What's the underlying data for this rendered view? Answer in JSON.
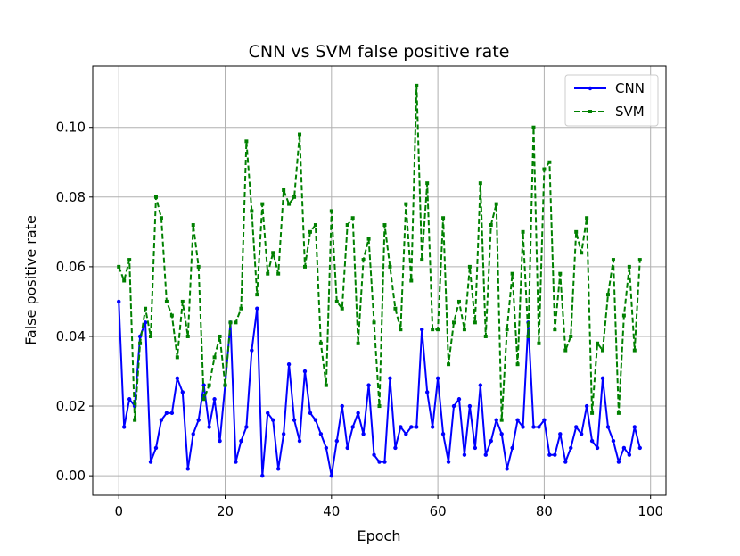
{
  "chart_data": {
    "type": "line",
    "title": "CNN vs SVM false positive rate",
    "xlabel": "Epoch",
    "ylabel": "False positive rate",
    "xlim": [
      -4.9,
      102.9
    ],
    "ylim": [
      -0.0056,
      0.1176
    ],
    "xticks": [
      0,
      20,
      40,
      60,
      80,
      100
    ],
    "yticks": [
      0.0,
      0.02,
      0.04,
      0.06,
      0.08,
      0.1
    ],
    "xtick_labels": [
      "0",
      "20",
      "40",
      "60",
      "80",
      "100"
    ],
    "ytick_labels": [
      "0.00",
      "0.02",
      "0.04",
      "0.06",
      "0.08",
      "0.10"
    ],
    "grid": true,
    "legend_position": "top-right",
    "series": [
      {
        "name": "CNN",
        "color": "#0000ff",
        "style": "solid-dot-markers",
        "values": [
          0.05,
          0.014,
          0.022,
          0.02,
          0.04,
          0.044,
          0.004,
          0.008,
          0.016,
          0.018,
          0.018,
          0.028,
          0.024,
          0.002,
          0.012,
          0.016,
          0.026,
          0.014,
          0.022,
          0.01,
          0.026,
          0.044,
          0.004,
          0.01,
          0.014,
          0.036,
          0.048,
          0.0,
          0.018,
          0.016,
          0.002,
          0.012,
          0.032,
          0.016,
          0.01,
          0.03,
          0.018,
          0.016,
          0.012,
          0.008,
          0.0,
          0.01,
          0.02,
          0.008,
          0.014,
          0.018,
          0.012,
          0.026,
          0.006,
          0.004,
          0.004,
          0.028,
          0.008,
          0.014,
          0.012,
          0.014,
          0.014,
          0.042,
          0.024,
          0.014,
          0.028,
          0.012,
          0.004,
          0.02,
          0.022,
          0.006,
          0.02,
          0.008,
          0.026,
          0.006,
          0.01,
          0.016,
          0.012,
          0.002,
          0.008,
          0.016,
          0.014,
          0.044,
          0.014,
          0.014,
          0.016,
          0.006,
          0.006,
          0.012,
          0.004,
          0.008,
          0.014,
          0.012,
          0.02,
          0.01,
          0.008,
          0.028,
          0.014,
          0.01,
          0.004,
          0.008,
          0.006,
          0.014,
          0.008
        ]
      },
      {
        "name": "SVM",
        "color": "#008000",
        "style": "dashed-square-markers",
        "values": [
          0.06,
          0.056,
          0.062,
          0.016,
          0.038,
          0.048,
          0.04,
          0.08,
          0.074,
          0.05,
          0.046,
          0.034,
          0.05,
          0.04,
          0.072,
          0.06,
          0.022,
          0.026,
          0.034,
          0.04,
          0.026,
          0.044,
          0.044,
          0.048,
          0.096,
          0.076,
          0.052,
          0.078,
          0.058,
          0.064,
          0.058,
          0.082,
          0.078,
          0.08,
          0.098,
          0.06,
          0.07,
          0.072,
          0.038,
          0.026,
          0.076,
          0.05,
          0.048,
          0.072,
          0.074,
          0.038,
          0.062,
          0.068,
          0.044,
          0.02,
          0.072,
          0.06,
          0.048,
          0.042,
          0.078,
          0.056,
          0.112,
          0.062,
          0.084,
          0.042,
          0.042,
          0.074,
          0.032,
          0.044,
          0.05,
          0.042,
          0.06,
          0.044,
          0.084,
          0.04,
          0.072,
          0.078,
          0.016,
          0.042,
          0.058,
          0.032,
          0.07,
          0.04,
          0.1,
          0.038,
          0.088,
          0.09,
          0.042,
          0.058,
          0.036,
          0.04,
          0.07,
          0.064,
          0.074,
          0.018,
          0.038,
          0.036,
          0.052,
          0.062,
          0.018,
          0.046,
          0.06,
          0.036,
          0.062
        ]
      }
    ]
  }
}
